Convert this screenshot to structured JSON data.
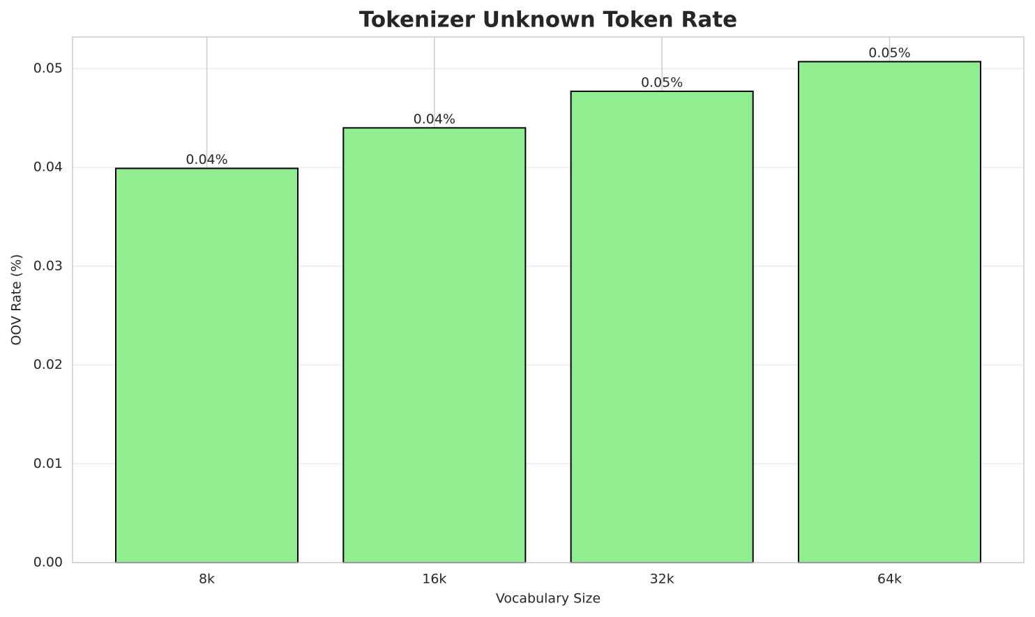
{
  "chart_data": {
    "type": "bar",
    "title": "Tokenizer Unknown Token Rate",
    "x_label": "Vocabulary Size",
    "y_label": "OOV Rate (%)",
    "categories": [
      "8k",
      "16k",
      "32k",
      "64k"
    ],
    "values": [
      0.0399,
      0.044,
      0.0477,
      0.0507
    ],
    "value_labels": [
      "0.04%",
      "0.04%",
      "0.05%",
      "0.05%"
    ],
    "color": "#90ee90",
    "edge_color": "#000000",
    "ylim": [
      0,
      0.0532
    ],
    "yticks": [
      {
        "value": 0,
        "label": "0.00"
      },
      0.01,
      0.02,
      0.03,
      0.04,
      0.05
    ],
    "grid": true
  }
}
